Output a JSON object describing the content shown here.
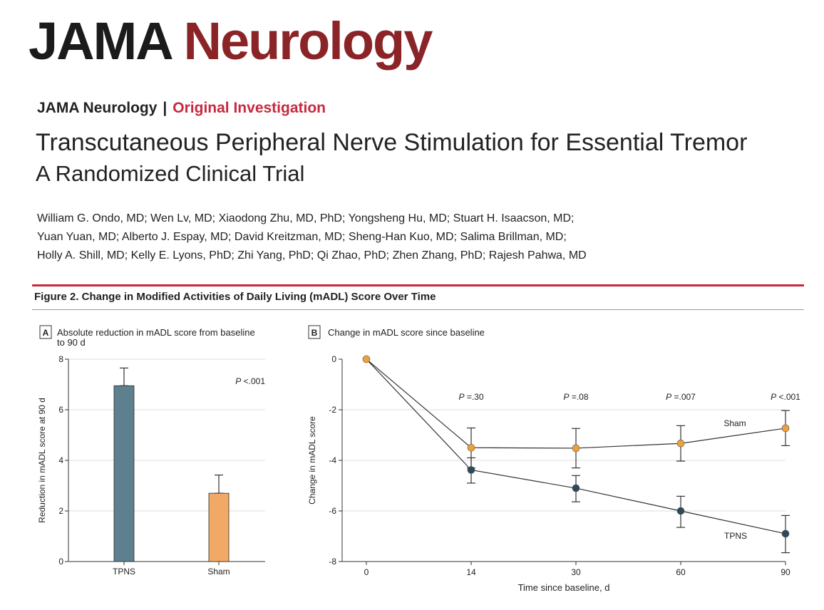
{
  "header": {
    "logo_part1": "JAMA",
    "logo_part2": "Neurology",
    "journal": "JAMA Neurology",
    "separator": "|",
    "article_type": "Original Investigation",
    "title": "Transcutaneous Peripheral Nerve Stimulation for Essential Tremor",
    "subtitle": "A Randomized Clinical Trial"
  },
  "authors": {
    "line1": "William G. Ondo, MD; Wen Lv, MD; Xiaodong Zhu, MD, PhD; Yongsheng Hu, MD; Stuart H. Isaacson, MD;",
    "line2": "Yuan Yuan, MD; Alberto J. Espay, MD; David Kreitzman, MD; Sheng-Han Kuo, MD; Salima Brillman, MD;",
    "line3": "Holly A. Shill, MD; Kelly E. Lyons, PhD; Zhi Yang, PhD; Qi Zhao, PhD; Zhen Zhang, PhD; Rajesh Pahwa, MD"
  },
  "figure": {
    "title": "Figure 2. Change in Modified Activities of Daily Living (mADL) Score Over Time"
  },
  "colors": {
    "tpns_bar": "#5e808e",
    "sham_bar": "#f2a965",
    "tpns_point": "#2c4a57",
    "sham_point": "#f0a03b",
    "line": "#333333",
    "grid": "#dedede"
  },
  "chart_data": [
    {
      "type": "bar",
      "panel": "A",
      "title": "Absolute reduction in mADL score from baseline",
      "title_line2": "to 90 d",
      "categories": [
        "TPNS",
        "Sham"
      ],
      "values": [
        6.95,
        2.7
      ],
      "error_upper": [
        7.65,
        3.42
      ],
      "ylabel": "Reduction in mADL score at 90 d",
      "xlabel": "",
      "ylim": [
        0,
        8
      ],
      "yticks": [
        0,
        2,
        4,
        6,
        8
      ],
      "grid": true,
      "annotation": {
        "p": "P",
        "text": " <.001"
      }
    },
    {
      "type": "line",
      "panel": "B",
      "title": "Change in mADL score since baseline",
      "xlabel": "Time since baseline, d",
      "ylabel": "Change in mADL score",
      "x": [
        0,
        14,
        30,
        60,
        90
      ],
      "ylim": [
        -8,
        0
      ],
      "yticks": [
        0,
        -2,
        -4,
        -6,
        -8
      ],
      "grid": true,
      "series": [
        {
          "name": "Sham",
          "values": [
            0,
            -3.5,
            -3.52,
            -3.33,
            -2.73
          ],
          "err_low": [
            null,
            -4.3,
            -4.3,
            -4.03,
            -3.42
          ],
          "err_high": [
            null,
            -2.72,
            -2.74,
            -2.63,
            -2.03
          ]
        },
        {
          "name": "TPNS",
          "values": [
            0,
            -4.38,
            -5.1,
            -6.0,
            -6.9
          ],
          "err_low": [
            null,
            -4.9,
            -5.64,
            -6.65,
            -7.65
          ],
          "err_high": [
            null,
            -3.9,
            -4.6,
            -5.42,
            -6.18
          ]
        }
      ],
      "p_values": [
        {
          "x": 14,
          "p": "P",
          "text": " =.30"
        },
        {
          "x": 30,
          "p": "P",
          "text": " =.08"
        },
        {
          "x": 60,
          "p": "P",
          "text": " =.007"
        },
        {
          "x": 90,
          "p": "P",
          "text": " <.001"
        }
      ]
    }
  ]
}
